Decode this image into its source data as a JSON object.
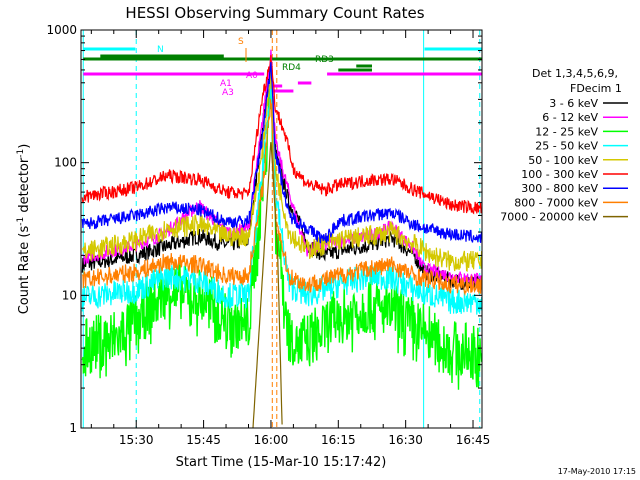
{
  "chart_data": {
    "type": "line",
    "title": "HESSI Observing Summary Count Rates",
    "xlabel": "Start Time (15-Mar-10 15:17:42)",
    "ylabel_main": "Count Rate (s",
    "ylabel_sup1": "-1",
    "ylabel_mid": " detector",
    "ylabel_sup2": "-1",
    "ylabel_end": ")",
    "yscale": "log",
    "ylim": [
      1,
      1000
    ],
    "xlim_min": [
      917.7,
      1007
    ],
    "x_ticks": [
      {
        "min": 930,
        "label": "15:30"
      },
      {
        "min": 945,
        "label": "15:45"
      },
      {
        "min": 960,
        "label": "16:00"
      },
      {
        "min": 975,
        "label": "16:15"
      },
      {
        "min": 990,
        "label": "16:30"
      },
      {
        "min": 1005,
        "label": "16:45"
      }
    ],
    "y_ticks": [
      {
        "value": 1,
        "label": "1"
      },
      {
        "value": 10,
        "label": "10"
      },
      {
        "value": 100,
        "label": "100"
      },
      {
        "value": 1000,
        "label": "1000"
      }
    ],
    "legend_header": [
      "Det 1,3,4,5,6,9,",
      "FDecim 1"
    ],
    "legend_position": "right",
    "timestamp": "17-May-2010 17:15",
    "series": [
      {
        "name": "3 - 6 keV",
        "color": "#000000",
        "points": [
          [
            918,
            17
          ],
          [
            930,
            20
          ],
          [
            936,
            23
          ],
          [
            944,
            28
          ],
          [
            950,
            24
          ],
          [
            955,
            26
          ],
          [
            958,
            170
          ],
          [
            960,
            620
          ],
          [
            961,
            120
          ],
          [
            964,
            50
          ],
          [
            966,
            38
          ],
          [
            968,
            24
          ],
          [
            972,
            20
          ],
          [
            976,
            22
          ],
          [
            982,
            24
          ],
          [
            987,
            27
          ],
          [
            992,
            20
          ],
          [
            994,
            15
          ],
          [
            1000,
            13
          ],
          [
            1007,
            12
          ]
        ]
      },
      {
        "name": "6 - 12 keV",
        "color": "#ff00ff",
        "points": [
          [
            918,
            19
          ],
          [
            930,
            24
          ],
          [
            936,
            29
          ],
          [
            944,
            48
          ],
          [
            950,
            30
          ],
          [
            955,
            32
          ],
          [
            958,
            190
          ],
          [
            960,
            700
          ],
          [
            961,
            140
          ],
          [
            964,
            60
          ],
          [
            966,
            35
          ],
          [
            968,
            22
          ],
          [
            972,
            24
          ],
          [
            976,
            26
          ],
          [
            982,
            28
          ],
          [
            987,
            33
          ],
          [
            992,
            22
          ],
          [
            994,
            16
          ],
          [
            1000,
            14
          ],
          [
            1007,
            13
          ]
        ]
      },
      {
        "name": "12 - 25 keV",
        "color": "#00ff00",
        "points": [
          [
            918,
            4
          ],
          [
            926,
            5
          ],
          [
            930,
            6.5
          ],
          [
            937,
            11.5
          ],
          [
            944,
            10
          ],
          [
            950,
            7
          ],
          [
            955,
            6
          ],
          [
            958,
            60
          ],
          [
            960,
            400
          ],
          [
            961,
            40
          ],
          [
            964,
            5
          ],
          [
            968,
            4.5
          ],
          [
            975,
            7
          ],
          [
            982,
            8.5
          ],
          [
            987,
            8
          ],
          [
            992,
            6
          ],
          [
            996,
            5
          ],
          [
            1000,
            4
          ],
          [
            1007,
            3.7
          ]
        ]
      },
      {
        "name": "25 - 50 keV",
        "color": "#00ffff",
        "points": [
          [
            918,
            9.5
          ],
          [
            930,
            11
          ],
          [
            937,
            14
          ],
          [
            944,
            13
          ],
          [
            950,
            10
          ],
          [
            955,
            10
          ],
          [
            958,
            80
          ],
          [
            960,
            420
          ],
          [
            961,
            60
          ],
          [
            964,
            12
          ],
          [
            968,
            10
          ],
          [
            975,
            12
          ],
          [
            982,
            14
          ],
          [
            987,
            13.5
          ],
          [
            992,
            11
          ],
          [
            996,
            10
          ],
          [
            1000,
            9
          ],
          [
            1007,
            9
          ]
        ]
      },
      {
        "name": "50 - 100 keV",
        "color": "#d4c800",
        "points": [
          [
            918,
            21
          ],
          [
            930,
            26
          ],
          [
            937,
            32
          ],
          [
            944,
            34
          ],
          [
            950,
            28
          ],
          [
            955,
            28
          ],
          [
            958,
            110
          ],
          [
            960,
            520
          ],
          [
            961,
            90
          ],
          [
            964,
            30
          ],
          [
            968,
            22
          ],
          [
            975,
            26
          ],
          [
            982,
            28
          ],
          [
            987,
            30
          ],
          [
            992,
            24
          ],
          [
            996,
            20
          ],
          [
            1000,
            18
          ],
          [
            1007,
            18
          ]
        ]
      },
      {
        "name": "100 - 300 keV",
        "color": "#ff0000",
        "points": [
          [
            918,
            55
          ],
          [
            930,
            65
          ],
          [
            937,
            80
          ],
          [
            944,
            75
          ],
          [
            950,
            60
          ],
          [
            955,
            58
          ],
          [
            958,
            300
          ],
          [
            960,
            620
          ],
          [
            961,
            260
          ],
          [
            963,
            170
          ],
          [
            965,
            90
          ],
          [
            968,
            70
          ],
          [
            972,
            62
          ],
          [
            975,
            68
          ],
          [
            982,
            74
          ],
          [
            987,
            75
          ],
          [
            992,
            62
          ],
          [
            996,
            55
          ],
          [
            1000,
            48
          ],
          [
            1007,
            45
          ]
        ]
      },
      {
        "name": "300 - 800 keV",
        "color": "#0000ff",
        "points": [
          [
            918,
            34
          ],
          [
            930,
            40
          ],
          [
            937,
            46
          ],
          [
            944,
            44
          ],
          [
            950,
            36
          ],
          [
            955,
            36
          ],
          [
            958,
            150
          ],
          [
            960,
            560
          ],
          [
            961,
            120
          ],
          [
            964,
            40
          ],
          [
            968,
            32
          ],
          [
            972,
            26
          ],
          [
            975,
            36
          ],
          [
            982,
            40
          ],
          [
            987,
            42
          ],
          [
            992,
            34
          ],
          [
            996,
            31
          ],
          [
            1000,
            29
          ],
          [
            1007,
            27
          ]
        ]
      },
      {
        "name": "800 - 7000 keV",
        "color": "#ff7f00",
        "points": [
          [
            918,
            13
          ],
          [
            930,
            15
          ],
          [
            937,
            18
          ],
          [
            944,
            17
          ],
          [
            950,
            14
          ],
          [
            955,
            14
          ],
          [
            958,
            60
          ],
          [
            960,
            300
          ],
          [
            961,
            40
          ],
          [
            964,
            14
          ],
          [
            968,
            12
          ],
          [
            975,
            14
          ],
          [
            982,
            16
          ],
          [
            987,
            17
          ],
          [
            992,
            14
          ],
          [
            996,
            13
          ],
          [
            1000,
            12
          ],
          [
            1007,
            12
          ]
        ]
      },
      {
        "name": "7000 - 20000 keV",
        "color": "#7f6400",
        "points": [
          [
            956,
            1
          ],
          [
            958,
            12
          ],
          [
            960,
            150
          ],
          [
            961.5,
            20
          ],
          [
            962.5,
            1
          ]
        ]
      }
    ],
    "attenuator_labels": [
      {
        "text": "N",
        "color": "#00ffff"
      },
      {
        "text": "S",
        "color": "#ff7f00"
      },
      {
        "text": "RD3",
        "color": "#008000"
      },
      {
        "text": "RD4",
        "color": "#008000"
      },
      {
        "text": "A1",
        "color": "#ff00ff"
      },
      {
        "text": "A0",
        "color": "#ff00ff"
      },
      {
        "text": "A3",
        "color": "#ff00ff"
      }
    ]
  }
}
